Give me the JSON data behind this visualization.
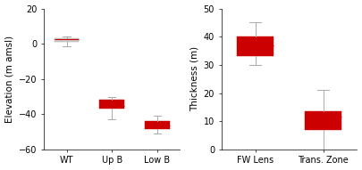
{
  "left": {
    "ylabel": "Elevation (m amsl)",
    "ylim": [
      -60,
      20
    ],
    "yticks": [
      -60,
      -40,
      -20,
      0,
      20
    ],
    "categories": [
      "WT",
      "Up B",
      "Low B"
    ],
    "boxes": [
      {
        "q1": 1.0,
        "median": 2.5,
        "q3": 3.0,
        "whislo": -1.5,
        "whishi": 4.0
      },
      {
        "q1": -37.0,
        "median": -35.5,
        "q3": -32.0,
        "whislo": -43.0,
        "whishi": -30.5
      },
      {
        "q1": -48.5,
        "median": -46.5,
        "q3": -44.0,
        "whislo": -51.0,
        "whishi": -41.0
      }
    ],
    "box_colors": [
      "#d0d0d0",
      "#cc0000",
      "#cc0000"
    ],
    "median_colors": [
      "#cc0000",
      "#cc0000",
      "#cc0000"
    ],
    "whisker_color": "#aaaaaa"
  },
  "right": {
    "ylabel": "Thickness (m)",
    "ylim": [
      0,
      50
    ],
    "yticks": [
      0,
      10,
      20,
      30,
      40,
      50
    ],
    "categories": [
      "FW Lens",
      "Trans. Zone"
    ],
    "boxes": [
      {
        "q1": 33.0,
        "median": 37.0,
        "q3": 40.0,
        "whislo": 30.0,
        "whishi": 45.0
      },
      {
        "q1": 7.0,
        "median": 11.5,
        "q3": 13.5,
        "whislo": 0.0,
        "whishi": 21.0
      }
    ],
    "box_colors": [
      "#cc0000",
      "#cc0000"
    ],
    "median_colors": [
      "#cc0000",
      "#cc0000"
    ],
    "whisker_color": "#aaaaaa"
  },
  "background_color": "#ffffff",
  "tick_label_fontsize": 7,
  "axis_label_fontsize": 7.5,
  "box_width": 0.55
}
